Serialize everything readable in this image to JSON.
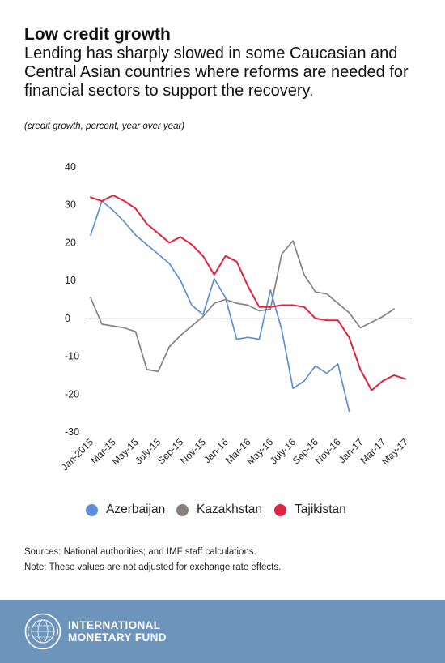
{
  "title": "Low credit growth",
  "subtitle": "Lending has sharply slowed in some Caucasian and Central Asian countries where reforms are needed for financial sectors to support the recovery.",
  "units": "(credit growth, percent, year over year)",
  "chart_data": {
    "type": "line",
    "xlabel": "",
    "ylabel": "",
    "ylim": [
      -30,
      40
    ],
    "yticks": [
      40,
      30,
      20,
      10,
      0,
      -10,
      -20,
      -30
    ],
    "y_tick_labels": [
      "40",
      "30",
      "20",
      "10",
      "0",
      "-10",
      "-20",
      "-30"
    ],
    "x_tick_labels": [
      "Jan-2015",
      "Mar-15",
      "May-15",
      "July-15",
      "Sep-15",
      "Nov-15",
      "Jan-16",
      "Mar-16",
      "May-16",
      "July-16",
      "Sep-16",
      "Nov-16",
      "Jan-17",
      "Mar-17",
      "May-17"
    ],
    "x": [
      "Jan-2015",
      "Feb-15",
      "Mar-15",
      "Apr-15",
      "May-15",
      "Jun-15",
      "July-15",
      "Aug-15",
      "Sep-15",
      "Oct-15",
      "Nov-15",
      "Dec-15",
      "Jan-16",
      "Feb-16",
      "Mar-16",
      "Apr-16",
      "May-16",
      "Jun-16",
      "July-16",
      "Aug-16",
      "Sep-16",
      "Oct-16",
      "Nov-16",
      "Dec-16",
      "Jan-17",
      "Feb-17",
      "Mar-17",
      "Apr-17",
      "May-17"
    ],
    "grid": false,
    "legend_position": "bottom",
    "series": [
      {
        "name": "Azerbaijan",
        "color": "#5b8fd6",
        "values": [
          22,
          31,
          28.5,
          25.5,
          22,
          19.5,
          17,
          14.5,
          10,
          3.5,
          1,
          10.5,
          5.5,
          -5.5,
          -5,
          -5.5,
          7.5,
          -3,
          -18.5,
          -16.5,
          -12.5,
          -14.5,
          -12,
          -24.5,
          null,
          null,
          null,
          null,
          null
        ]
      },
      {
        "name": "Kazakhstan",
        "color": "#8a7f80",
        "values": [
          5.5,
          -1.5,
          -2,
          -2.5,
          -3.5,
          -13.5,
          -14,
          -7.5,
          -4.5,
          -2,
          0.5,
          4,
          5,
          4,
          3.5,
          2,
          2.5,
          17,
          20.5,
          11.5,
          7,
          6.5,
          4,
          1.5,
          -2.5,
          -1,
          0.5,
          2.5,
          null
        ]
      },
      {
        "name": "Tajikistan",
        "color": "#e2233d",
        "values": [
          32,
          31,
          32.5,
          31,
          29,
          25,
          22.5,
          20,
          21.5,
          19.5,
          16.5,
          11.5,
          16.5,
          15,
          8.5,
          3,
          3,
          3.5,
          3.5,
          3,
          0,
          -0.5,
          -0.5,
          -5,
          -13.5,
          -19,
          -16.5,
          -15,
          -16
        ]
      }
    ]
  },
  "sources": "Sources: National authorities; and IMF staff calculations.",
  "note": "Note: These values are not adjusted for exchange rate effects.",
  "footer": {
    "org_line1": "INTERNATIONAL",
    "org_line2": "MONETARY FUND",
    "seal_text": "INTERNATIONAL MONETARY FUND"
  }
}
